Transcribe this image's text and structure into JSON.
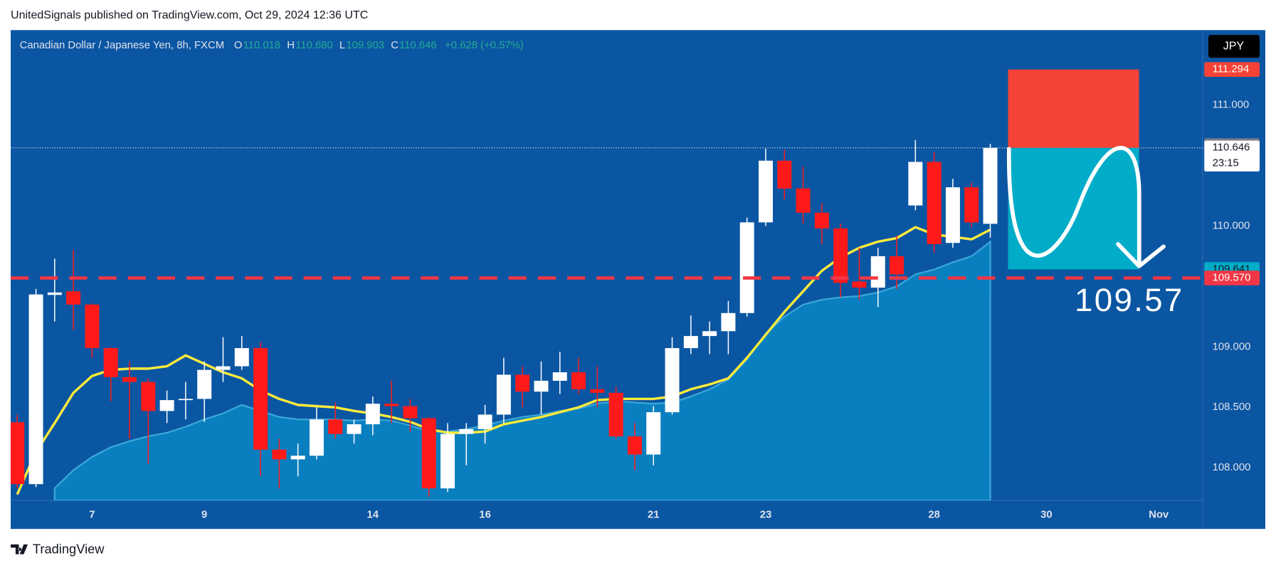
{
  "header": "UnitedSignals published on TradingView.com, Oct 29, 2024 12:36 UTC",
  "footer": "TradingView",
  "chart_data": {
    "type": "candlestick",
    "legend": {
      "name": "Canadian Dollar / Japanese Yen, 8h, FXCM",
      "fields": [
        {
          "key": "O",
          "text": "110.018"
        },
        {
          "key": "H",
          "text": "110.680"
        },
        {
          "key": "L",
          "text": "109.903"
        },
        {
          "key": "C",
          "text": "110.646"
        }
      ],
      "change": "+0.628 (+0.57%)"
    },
    "currency": "JPY",
    "up_color": "#ffffff",
    "down_color": "#ff1a1a",
    "open": [
      108.377,
      107.865,
      109.43,
      109.46,
      109.35,
      108.99,
      108.75,
      108.71,
      108.47,
      108.56,
      108.57,
      108.81,
      108.84,
      108.99,
      108.15,
      108.07,
      108.1,
      108.4,
      108.28,
      108.36,
      108.53,
      108.51,
      108.41,
      107.83,
      108.28,
      108.32,
      108.44,
      108.77,
      108.63,
      108.72,
      108.79,
      108.65,
      108.62,
      108.26,
      108.11,
      108.46,
      108.99,
      109.09,
      109.13,
      109.28,
      110.03,
      110.54,
      110.31,
      110.11,
      109.98,
      109.54,
      109.49,
      109.75,
      110.17,
      110.53,
      109.86,
      110.32,
      110.018
    ],
    "high": [
      108.44,
      109.48,
      109.73,
      109.8,
      109.36,
      109.0,
      108.88,
      108.74,
      108.64,
      108.71,
      108.88,
      109.08,
      109.09,
      109.04,
      108.24,
      108.2,
      108.5,
      108.54,
      108.4,
      108.59,
      108.72,
      108.57,
      108.42,
      108.37,
      108.37,
      108.52,
      108.91,
      108.84,
      108.88,
      108.96,
      108.91,
      108.84,
      108.67,
      108.37,
      108.51,
      109.08,
      109.26,
      109.21,
      109.38,
      110.07,
      110.64,
      110.63,
      110.49,
      110.19,
      110.02,
      109.82,
      109.82,
      109.92,
      110.71,
      110.61,
      110.39,
      110.36,
      110.68
    ],
    "low": [
      107.83,
      107.84,
      109.21,
      109.14,
      108.91,
      108.55,
      108.24,
      108.03,
      108.37,
      108.4,
      108.38,
      108.71,
      108.81,
      107.93,
      107.83,
      107.93,
      108.07,
      108.24,
      108.2,
      108.27,
      108.37,
      108.3,
      107.76,
      107.8,
      108.02,
      108.2,
      108.37,
      108.5,
      108.44,
      108.61,
      108.61,
      108.5,
      108.24,
      107.98,
      108.02,
      108.44,
      108.94,
      108.94,
      108.94,
      109.25,
      110.0,
      110.22,
      110.02,
      109.85,
      109.41,
      109.39,
      109.33,
      109.48,
      110.13,
      109.78,
      109.82,
      109.99,
      109.903
    ],
    "close": [
      107.865,
      109.434,
      109.45,
      109.35,
      108.99,
      108.75,
      108.71,
      108.47,
      108.56,
      108.57,
      108.81,
      108.84,
      108.99,
      108.15,
      108.07,
      108.1,
      108.4,
      108.28,
      108.36,
      108.53,
      108.51,
      108.41,
      107.83,
      108.28,
      108.32,
      108.44,
      108.77,
      108.63,
      108.72,
      108.79,
      108.65,
      108.62,
      108.26,
      108.11,
      108.46,
      108.99,
      109.09,
      109.13,
      109.28,
      110.03,
      110.54,
      110.31,
      110.11,
      109.98,
      109.53,
      109.49,
      109.75,
      109.6,
      110.53,
      109.85,
      110.32,
      110.03,
      110.646
    ],
    "indicators": [
      {
        "style": "area",
        "color": "#0b86c4",
        "values": [
          null,
          null,
          107.83,
          107.98,
          108.09,
          108.17,
          108.22,
          108.26,
          108.29,
          108.34,
          108.4,
          108.45,
          108.52,
          108.47,
          108.42,
          108.4,
          108.4,
          108.4,
          108.39,
          108.4,
          108.39,
          108.35,
          108.3,
          108.3,
          108.32,
          108.35,
          108.39,
          108.42,
          108.44,
          108.47,
          108.49,
          108.53,
          108.55,
          108.54,
          108.53,
          108.54,
          108.59,
          108.65,
          108.73,
          108.9,
          109.11,
          109.25,
          109.35,
          109.39,
          109.41,
          109.42,
          109.45,
          109.5,
          109.6,
          109.64,
          109.7,
          109.75,
          109.87
        ]
      },
      {
        "style": "line",
        "color": "#ffeb3b",
        "values": [
          107.78,
          108.13,
          108.37,
          108.62,
          108.76,
          108.81,
          108.82,
          108.82,
          108.84,
          108.93,
          108.86,
          108.79,
          108.74,
          108.64,
          108.57,
          108.52,
          108.51,
          108.5,
          108.47,
          108.45,
          108.42,
          108.38,
          108.32,
          108.29,
          108.29,
          108.3,
          108.36,
          108.39,
          108.42,
          108.46,
          108.5,
          108.56,
          108.57,
          108.57,
          108.57,
          108.59,
          108.65,
          108.69,
          108.74,
          108.91,
          109.1,
          109.29,
          109.46,
          109.63,
          109.74,
          109.82,
          109.87,
          109.9,
          109.99,
          109.93,
          109.91,
          109.89,
          109.97
        ]
      }
    ],
    "xlim": [
      -0.35,
      63.35
    ],
    "xticks": [
      {
        "value": 4,
        "label": "7"
      },
      {
        "value": 10,
        "label": "9"
      },
      {
        "value": 19,
        "label": "14"
      },
      {
        "value": 25,
        "label": "16"
      },
      {
        "value": 34,
        "label": "21"
      },
      {
        "value": 40,
        "label": "23"
      },
      {
        "value": 49,
        "label": "28"
      },
      {
        "value": 55,
        "label": "30"
      },
      {
        "value": 61,
        "label": "Nov"
      }
    ],
    "ylim": [
      107.73,
      111.62
    ],
    "yticks": [
      {
        "value": 108,
        "label": "108.000"
      },
      {
        "value": 108.5,
        "label": "108.500"
      },
      {
        "value": 109,
        "label": "109.000"
      },
      {
        "value": 110,
        "label": "110.000"
      },
      {
        "value": 111,
        "label": "111.000"
      }
    ],
    "grid": false,
    "position": {
      "stop": 111.294,
      "entry": 110.646,
      "target": 109.641,
      "stop_color": "#f44336",
      "target_color": "#00acc8"
    },
    "marker_price": {
      "value": 110.665,
      "color": "#787b86"
    },
    "countdown": "23:15",
    "support_line": {
      "value": 109.57,
      "label": "109.570",
      "color": "#f23645"
    }
  }
}
